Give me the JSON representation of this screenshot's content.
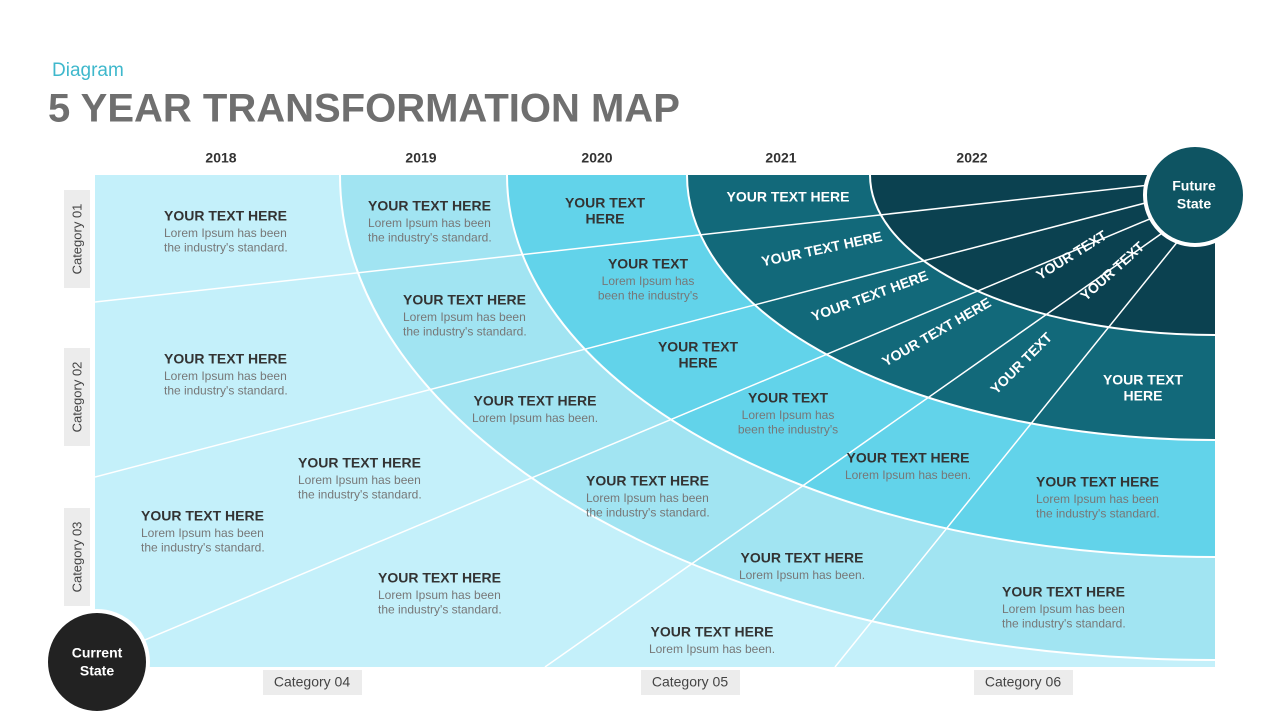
{
  "header": {
    "subtitle": "Diagram",
    "title": "5 YEAR TRANSFORMATION MAP"
  },
  "years": [
    "2018",
    "2019",
    "2020",
    "2021",
    "2022"
  ],
  "row_categories": [
    "Category 01",
    "Category 02",
    "Category 03"
  ],
  "column_categories": [
    "Category 04",
    "Category 05",
    "Category 06"
  ],
  "current_state": [
    "Current",
    "State"
  ],
  "future_state": [
    "Future",
    "State"
  ],
  "cells": [
    {
      "lines": [
        "YOUR TEXT HERE"
      ],
      "body": [
        "Lorem Ipsum has been",
        "the industry's standard."
      ]
    },
    {
      "lines": [
        "YOUR TEXT HERE"
      ],
      "body": [
        "Lorem Ipsum has been",
        "the industry's standard."
      ]
    },
    {
      "lines": [
        "YOUR TEXT",
        "HERE"
      ],
      "body": []
    },
    {
      "lines": [
        "YOUR TEXT HERE"
      ],
      "body": []
    },
    {
      "lines": [
        "YOUR TEXT"
      ],
      "body": [
        "Lorem Ipsum has",
        "been the industry's"
      ]
    },
    {
      "lines": [
        "YOUR TEXT HERE"
      ],
      "body": []
    },
    {
      "lines": [
        "YOUR TEXT HERE"
      ],
      "body": [
        "Lorem Ipsum has been",
        "the industry's standard."
      ]
    },
    {
      "lines": [
        "YOUR TEXT HERE"
      ],
      "body": []
    },
    {
      "lines": [
        "YOUR TEXT"
      ],
      "body": []
    },
    {
      "lines": [
        "YOUR TEXT"
      ],
      "body": []
    },
    {
      "lines": [
        "YOUR TEXT HERE"
      ],
      "body": [
        "Lorem Ipsum has been",
        "the industry's standard."
      ]
    },
    {
      "lines": [
        "YOUR TEXT",
        "HERE"
      ],
      "body": []
    },
    {
      "lines": [
        "YOUR TEXT HERE"
      ],
      "body": []
    },
    {
      "lines": [
        "YOUR TEXT"
      ],
      "body": []
    },
    {
      "lines": [
        "YOUR TEXT",
        "HERE"
      ],
      "body": []
    },
    {
      "lines": [
        "YOUR TEXT HERE"
      ],
      "body": [
        "Lorem Ipsum has been."
      ]
    },
    {
      "lines": [
        "YOUR TEXT"
      ],
      "body": [
        "Lorem Ipsum has",
        "been the industry's"
      ]
    },
    {
      "lines": [
        "YOUR TEXT HERE"
      ],
      "body": [
        "Lorem Ipsum has been",
        "the industry's standard."
      ]
    },
    {
      "lines": [
        "YOUR TEXT HERE"
      ],
      "body": [
        "Lorem Ipsum has been."
      ]
    },
    {
      "lines": [
        "YOUR TEXT HERE"
      ],
      "body": [
        "Lorem Ipsum has been",
        "the industry's standard."
      ]
    },
    {
      "lines": [
        "YOUR TEXT HERE"
      ],
      "body": [
        "Lorem Ipsum has been",
        "the industry's standard."
      ]
    },
    {
      "lines": [
        "YOUR TEXT HERE"
      ],
      "body": [
        "Lorem Ipsum has been",
        "the industry's standard."
      ]
    },
    {
      "lines": [
        "YOUR TEXT HERE"
      ],
      "body": [
        "Lorem Ipsum has been."
      ]
    },
    {
      "lines": [
        "YOUR TEXT HERE"
      ],
      "body": [
        "Lorem Ipsum has been",
        "the industry's standard."
      ]
    },
    {
      "lines": [
        "YOUR TEXT HERE"
      ],
      "body": [
        "Lorem Ipsum has been",
        "the industry's standard."
      ]
    },
    {
      "lines": [
        "YOUR TEXT HERE"
      ],
      "body": [
        "Lorem Ipsum has been."
      ]
    }
  ]
}
